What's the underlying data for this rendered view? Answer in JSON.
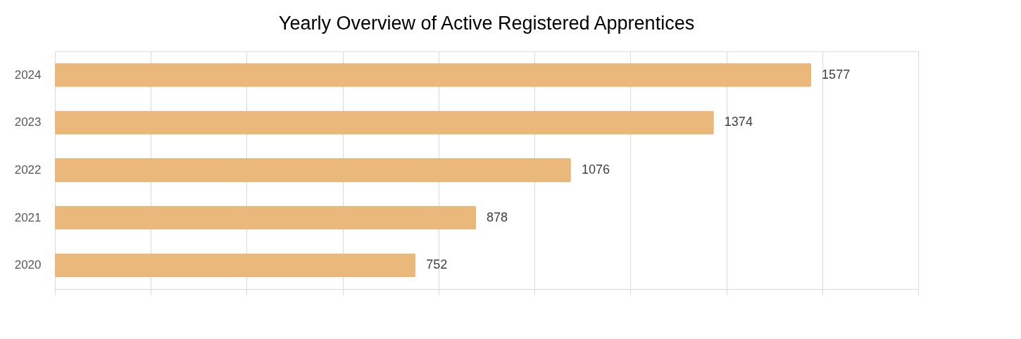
{
  "chart_data": {
    "type": "bar",
    "orientation": "horizontal",
    "title": "Yearly Overview of Active Registered Apprentices",
    "categories": [
      "2024",
      "2023",
      "2022",
      "2021",
      "2020"
    ],
    "values": [
      1577,
      1374,
      1076,
      878,
      752
    ],
    "color": "#ebb87c",
    "xlim": [
      0,
      1800
    ],
    "xticks": [
      {
        "value": 0,
        "label": null
      },
      {
        "value": 200,
        "label": null
      },
      {
        "value": 400,
        "label": null
      },
      {
        "value": 600,
        "label": null
      },
      {
        "value": 800,
        "label": null
      },
      {
        "value": 1000,
        "label": null
      },
      {
        "value": 1200,
        "label": null
      },
      {
        "value": 1400,
        "label": null
      },
      {
        "value": 1600,
        "label": null
      },
      {
        "value": 1800,
        "label": null
      }
    ],
    "tick_labels": "y",
    "grid": "x",
    "data_labels": true
  }
}
